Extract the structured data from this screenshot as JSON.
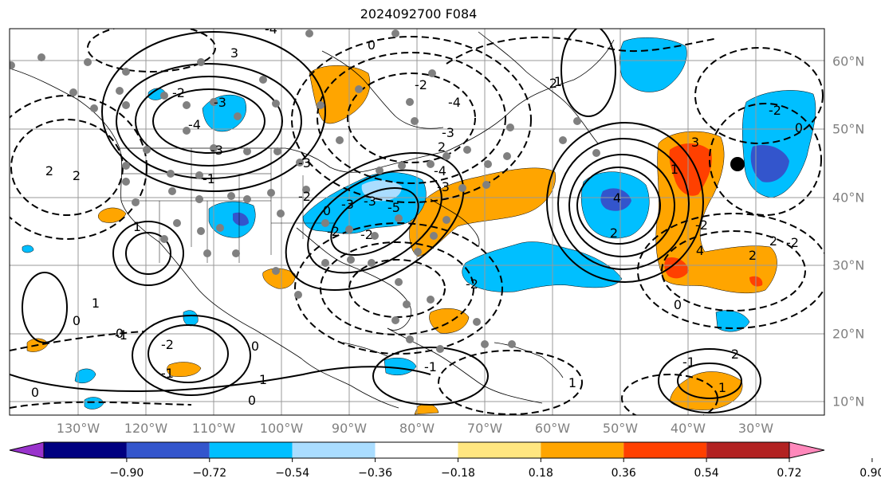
{
  "title": "2024092700 F084",
  "lon_labels": [
    "130°W",
    "120°W",
    "110°W",
    "100°W",
    "90°W",
    "80°W",
    "70°W",
    "60°W",
    "50°W",
    "40°W",
    "30°W"
  ],
  "lat_labels": [
    "60°N",
    "50°N",
    "40°N",
    "30°N",
    "20°N",
    "10°N"
  ],
  "colorbar": {
    "labels": [
      "−0.90",
      "−0.72",
      "−0.54",
      "−0.36",
      "−0.18",
      "0.18",
      "0.36",
      "0.54",
      "0.72",
      "0.90"
    ],
    "colors": [
      "#9933cc",
      "#000080",
      "#3355cc",
      "#00bfff",
      "#aaddff",
      "#ffffff",
      "#ffe680",
      "#ffa500",
      "#ff4000",
      "#b22222",
      "#ff88bb"
    ]
  },
  "contour_labels": [
    "-4",
    "3",
    "-2",
    "-3",
    "-4",
    "-3",
    "2",
    "-1",
    "-3",
    "-3",
    "-5",
    "-2",
    "2",
    "-3",
    "-4",
    "-2",
    "-4",
    "-3",
    "2",
    "0",
    "-3",
    "-2",
    "0",
    "-2",
    "2",
    "1",
    "1",
    "0",
    "-1",
    "0",
    "1",
    "0",
    "-2",
    "-1",
    "4",
    "2",
    "1",
    "3",
    "-2",
    "4",
    "2",
    "-2",
    "2",
    "-2",
    "-2",
    "1",
    "0",
    "0",
    "-1",
    "1",
    "2",
    "-1",
    "0",
    "0",
    "1"
  ]
}
